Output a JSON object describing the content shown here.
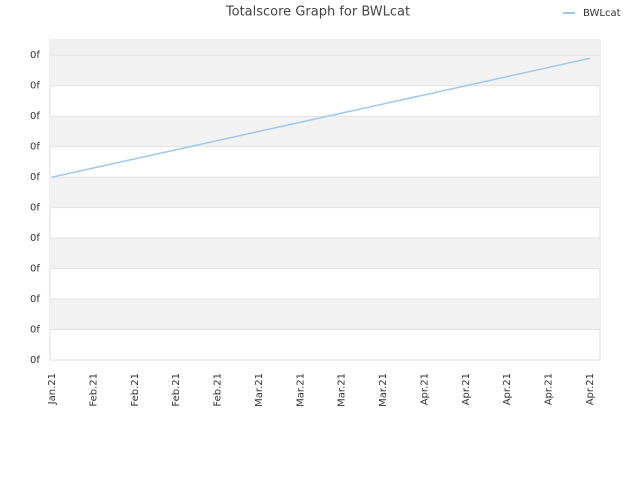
{
  "chart_data": {
    "type": "line",
    "title": "Totalscore Graph for BWLcat",
    "categories": [
      "Jan.21",
      "Feb.21",
      "Feb.21",
      "Feb.21",
      "Feb.21",
      "Mar.21",
      "Mar.21",
      "Mar.21",
      "Mar.21",
      "Apr.21",
      "Apr.21",
      "Apr.21",
      "Apr.21",
      "Apr.21"
    ],
    "series": [
      {
        "name": "BWLcat",
        "color": "#9ec8f0",
        "values": [
          6,
          6.3,
          6.6,
          6.9,
          7.2,
          7.5,
          7.8,
          8.1,
          8.4,
          8.7,
          9.0,
          9.3,
          9.6,
          9.9
        ]
      }
    ],
    "ylim": [
      0,
      10.5
    ],
    "yticks": [
      {
        "value": 0,
        "label": "0f"
      },
      {
        "value": 1,
        "label": "0f"
      },
      {
        "value": 2,
        "label": "0f"
      },
      {
        "value": 3,
        "label": "0f"
      },
      {
        "value": 4,
        "label": "0f"
      },
      {
        "value": 5,
        "label": "0f"
      },
      {
        "value": 6,
        "label": "0f"
      },
      {
        "value": 7,
        "label": "0f"
      },
      {
        "value": 8,
        "label": "0f"
      },
      {
        "value": 9,
        "label": "0f"
      },
      {
        "value": 10,
        "label": "0f"
      }
    ],
    "grid": true,
    "legend": "top-right"
  }
}
